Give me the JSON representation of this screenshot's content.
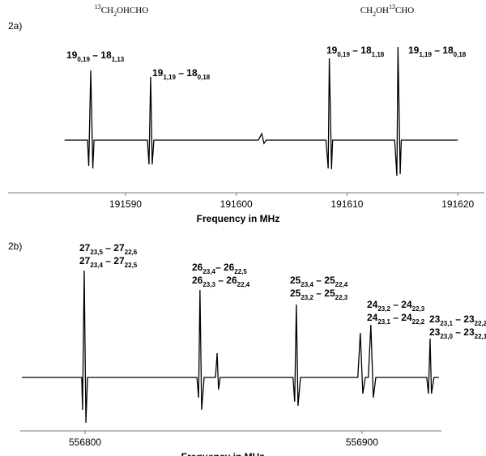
{
  "chart_data": [
    {
      "type": "line",
      "panel_label": "2a)",
      "headers": [
        [
          {
            "sup": "13"
          },
          {
            "t": "CH"
          },
          {
            "sub": "2"
          },
          {
            "t": "OHCHO"
          }
        ],
        [
          {
            "t": "CH"
          },
          {
            "sub": "2"
          },
          {
            "t": "OH"
          },
          {
            "sup": "13"
          },
          {
            "t": "CHO"
          }
        ]
      ],
      "xlabel": "Frequency in MHz",
      "xlim": [
        191579.4,
        191622.4
      ],
      "xticks": [
        191590,
        191600,
        191610,
        191620
      ],
      "ylim": [
        -65,
        120
      ],
      "color": "#000000",
      "x": [
        191584.5,
        191586.57,
        191586.68,
        191586.86,
        191587.05,
        191587.16,
        191591.98,
        191592.12,
        191592.27,
        191592.41,
        191592.56,
        191602.0,
        191602.3,
        191602.5,
        191602.7,
        191608.1,
        191608.3,
        191608.4,
        191608.6,
        191608.7,
        191614.3,
        191614.5,
        191614.6,
        191614.8,
        191614.9,
        191620.0
      ],
      "values": [
        0,
        0,
        -32,
        86,
        -35,
        0,
        0,
        -30,
        78,
        -30,
        0,
        0,
        8,
        -4,
        0,
        0,
        -35,
        101,
        -36,
        0,
        0,
        -44,
        115,
        -42,
        0,
        0
      ],
      "annotations": [
        [
          [
            {
              "t": "19"
            },
            {
              "sub": "0,19"
            },
            {
              "t": " – 18"
            },
            {
              "sub": "1,13"
            }
          ]
        ],
        [
          [
            {
              "t": "19"
            },
            {
              "sub": "1,19"
            },
            {
              "t": " – 18"
            },
            {
              "sub": "0,18"
            }
          ]
        ],
        [
          [
            {
              "t": "19"
            },
            {
              "sub": "0,19"
            },
            {
              "t": " – 18"
            },
            {
              "sub": "1,18"
            }
          ]
        ],
        [
          [
            {
              "t": "19"
            },
            {
              "sub": "1,19"
            },
            {
              "t": " – 18"
            },
            {
              "sub": "0,18"
            }
          ]
        ]
      ]
    },
    {
      "type": "line",
      "panel_label": "2b)",
      "xlabel": "Frequency in MHz",
      "xlim": [
        556776.6,
        556928.7
      ],
      "xticks": [
        556800,
        556900
      ],
      "ylim": [
        -66,
        146
      ],
      "color": "#000000",
      "x": [
        556777.2,
        556798.8,
        556799.1,
        556799.7,
        556800.3,
        556800.9,
        556840.4,
        556841.0,
        556841.5,
        556842.1,
        556843.0,
        556847.1,
        556847.7,
        556848.2,
        556848.8,
        556875.1,
        556875.7,
        556876.3,
        556876.9,
        556877.8,
        556898.5,
        556899.4,
        556900.3,
        556901.2,
        556902.3,
        556903.2,
        556904.1,
        556905.0,
        556923.4,
        556924.0,
        556924.6,
        556925.1,
        556926.0,
        556927.8
      ],
      "values": [
        0,
        0,
        -40,
        132,
        -56,
        0,
        0,
        -25,
        108,
        -40,
        0,
        0,
        30,
        -15,
        0,
        0,
        -30,
        90,
        -35,
        0,
        0,
        55,
        -20,
        0,
        0,
        65,
        -25,
        0,
        0,
        -20,
        48,
        -20,
        0,
        0
      ],
      "annotations": [
        [
          [
            {
              "t": "27"
            },
            {
              "sub": "23,5"
            },
            {
              "t": " – 27"
            },
            {
              "sub": "22,6"
            }
          ],
          [
            {
              "t": "27"
            },
            {
              "sub": "23,4"
            },
            {
              "t": " – 27"
            },
            {
              "sub": "22,5"
            }
          ]
        ],
        [
          [
            {
              "t": "26"
            },
            {
              "sub": "23,4"
            },
            {
              "t": "– 26"
            },
            {
              "sub": "22,5"
            }
          ],
          [
            {
              "t": "26"
            },
            {
              "sub": "23,3"
            },
            {
              "t": " – 26"
            },
            {
              "sub": "22,4"
            }
          ]
        ],
        [
          [
            {
              "t": "25"
            },
            {
              "sub": "23,4"
            },
            {
              "t": " – 25"
            },
            {
              "sub": "22,4"
            }
          ],
          [
            {
              "t": "25"
            },
            {
              "sub": "23,2"
            },
            {
              "t": " – 25"
            },
            {
              "sub": "22,3"
            }
          ]
        ],
        [
          [
            {
              "t": "24"
            },
            {
              "sub": "23,2"
            },
            {
              "t": " – 24"
            },
            {
              "sub": "22,3"
            }
          ],
          [
            {
              "t": "24"
            },
            {
              "sub": "23,1"
            },
            {
              "t": " – 24"
            },
            {
              "sub": "22,2"
            }
          ]
        ],
        [
          [
            {
              "t": "23"
            },
            {
              "sub": "23,1"
            },
            {
              "t": " – 23"
            },
            {
              "sub": "22,2"
            }
          ],
          [
            {
              "t": "23"
            },
            {
              "sub": "23,0"
            },
            {
              "t": " – 23"
            },
            {
              "sub": "22,1"
            }
          ]
        ]
      ]
    }
  ]
}
